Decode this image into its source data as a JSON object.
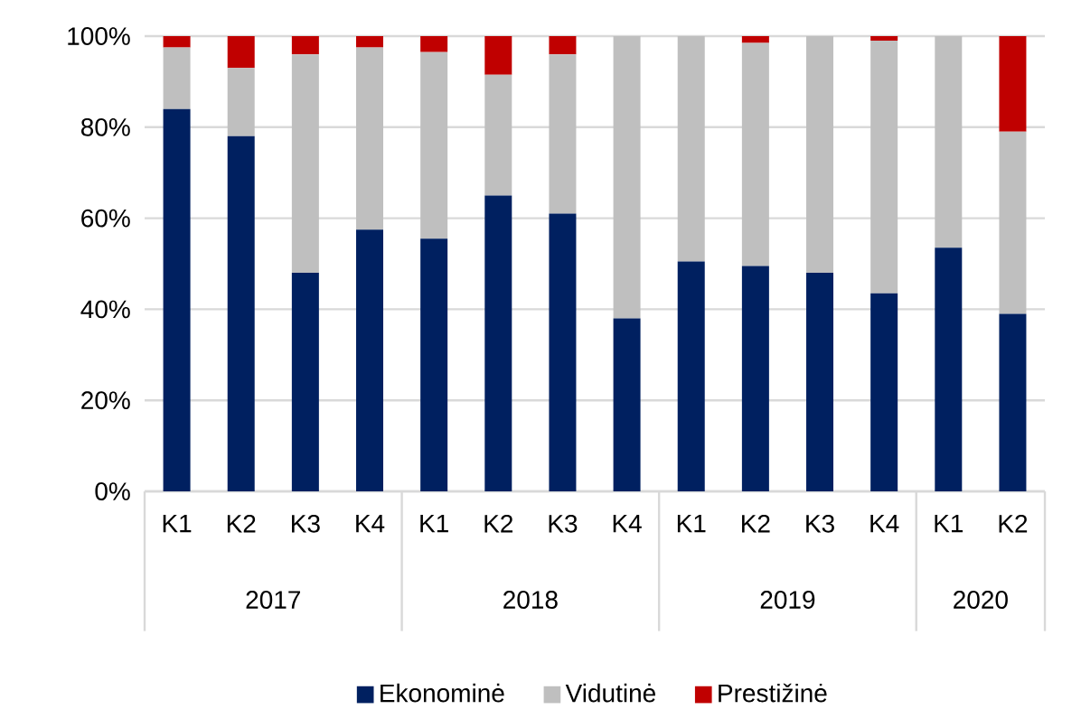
{
  "chart_data": {
    "type": "bar",
    "stacked": true,
    "categories": [
      "K1",
      "K2",
      "K3",
      "K4",
      "K1",
      "K2",
      "K3",
      "K4",
      "K1",
      "K2",
      "K3",
      "K4",
      "K1",
      "K2"
    ],
    "series": [
      {
        "name": "Ekonominė",
        "color": "#002060",
        "values": [
          84,
          78,
          48,
          57.5,
          55.5,
          65,
          61,
          38,
          50.5,
          49.5,
          48,
          43.5,
          53.5,
          39
        ]
      },
      {
        "name": "Vidutinė",
        "color": "#bfbfbf",
        "values": [
          13.5,
          15,
          48,
          40,
          41,
          26.5,
          35,
          62,
          49.5,
          49,
          52,
          55.5,
          46.5,
          40
        ]
      },
      {
        "name": "Prestižinė",
        "color": "#c00000",
        "values": [
          2.5,
          7,
          4,
          2.5,
          3.5,
          8.5,
          4,
          0,
          0,
          1.5,
          0,
          1,
          0,
          21
        ]
      }
    ],
    "ylim": [
      0,
      100
    ],
    "yticks": [
      {
        "value": 0,
        "label": "0%"
      },
      {
        "value": 20,
        "label": "20%"
      },
      {
        "value": 40,
        "label": "40%"
      },
      {
        "value": 60,
        "label": "60%"
      },
      {
        "value": 80,
        "label": "80%"
      },
      {
        "value": 100,
        "label": "100%"
      }
    ],
    "grid": "y",
    "legend": "bottom",
    "annotations": [
      "2017",
      "2018",
      "2019",
      "2020"
    ]
  }
}
